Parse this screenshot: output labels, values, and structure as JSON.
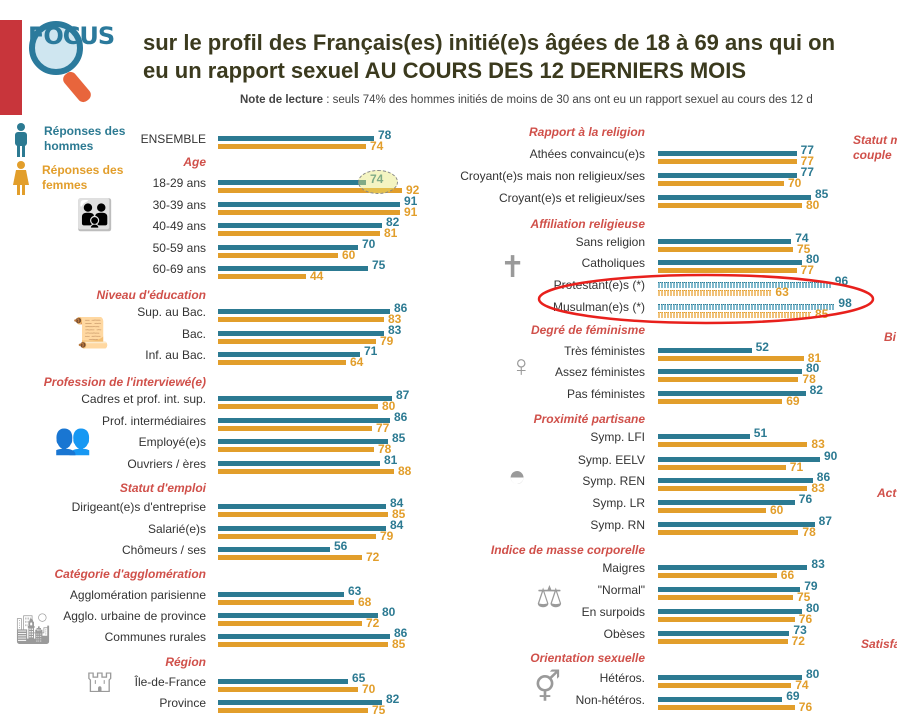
{
  "header": {
    "logo_text": "FOCUS",
    "title_line1": "sur le profil des Français(es) initié(e)s âgées de 18 à 69 ans qui on",
    "title_line2": "eu un rapport sexuel AU COURS DES 12 DERNIERS MOIS",
    "note_label": "Note de lecture",
    "note_text": " : seuls 74% des hommes initiés de moins de 30 ans ont eu un rapport sexuel au cours des 12 d"
  },
  "legend": {
    "men": "Réponses des hommes",
    "women": "Réponses des femmes"
  },
  "colors": {
    "men": "#2c7a92",
    "women": "#e29e2b",
    "heading": "#d0504a",
    "highlight": "#e8201c"
  },
  "right_edge_headings": [
    "Statut m",
    "couple",
    "Bi",
    "Act",
    "Satisfa"
  ],
  "chart_data": {
    "type": "bar",
    "orientation": "horizontal",
    "unit": "%",
    "series_names": [
      "Réponses des hommes",
      "Réponses des femmes"
    ],
    "ensemble": {
      "label": "ENSEMBLE",
      "men": 78,
      "women": 74
    },
    "columns": [
      [
        {
          "heading": "Age",
          "rows": [
            {
              "label": "18-29 ans",
              "men": 74,
              "women": 92,
              "highlighted": "men"
            },
            {
              "label": "30-39 ans",
              "men": 91,
              "women": 91
            },
            {
              "label": "40-49 ans",
              "men": 82,
              "women": 81
            },
            {
              "label": "50-59 ans",
              "men": 70,
              "women": 60
            },
            {
              "label": "60-69 ans",
              "men": 75,
              "women": 44
            }
          ]
        },
        {
          "heading": "Niveau d'éducation",
          "rows": [
            {
              "label": "Sup. au Bac.",
              "men": 86,
              "women": 83
            },
            {
              "label": "Bac.",
              "men": 83,
              "women": 79
            },
            {
              "label": "Inf. au Bac.",
              "men": 71,
              "women": 64
            }
          ]
        },
        {
          "heading": "Profession de l'interviewé(e)",
          "rows": [
            {
              "label": "Cadres et prof. int. sup.",
              "men": 87,
              "women": 80
            },
            {
              "label": "Prof. intermédiaires",
              "men": 86,
              "women": 77
            },
            {
              "label": "Employé(e)s",
              "men": 85,
              "women": 78
            },
            {
              "label": "Ouvriers / ères",
              "men": 81,
              "women": 88
            }
          ]
        },
        {
          "heading": "Statut d'emploi",
          "rows": [
            {
              "label": "Dirigeant(e)s d'entreprise",
              "men": 84,
              "women": 85
            },
            {
              "label": "Salarié(e)s",
              "men": 84,
              "women": 79
            },
            {
              "label": "Chômeurs / ses",
              "men": 56,
              "women": 72
            }
          ]
        },
        {
          "heading": "Catégorie d'agglomération",
          "rows": [
            {
              "label": "Agglomération parisienne",
              "men": 63,
              "women": 68
            },
            {
              "label": "Agglo. urbaine de province",
              "men": 80,
              "women": 72
            },
            {
              "label": "Communes rurales",
              "men": 86,
              "women": 85
            }
          ]
        },
        {
          "heading": "Région",
          "rows": [
            {
              "label": "Île-de-France",
              "men": 65,
              "women": 70
            },
            {
              "label": "Province",
              "men": 82,
              "women": 75
            }
          ]
        }
      ],
      [
        {
          "heading": "Rapport à la religion",
          "rows": [
            {
              "label": "Athées convaincu(e)s",
              "men": 77,
              "women": 77
            },
            {
              "label": "Croyant(e)s mais non religieux/ses",
              "men": 77,
              "women": 70
            },
            {
              "label": "Croyant(e)s et religieux/ses",
              "men": 85,
              "women": 80
            }
          ]
        },
        {
          "heading": "Affiliation religieuse",
          "rows": [
            {
              "label": "Sans religion",
              "men": 74,
              "women": 75
            },
            {
              "label": "Catholiques",
              "men": 80,
              "women": 77
            },
            {
              "label": "Protestant(e)s (*)",
              "men": 96,
              "women": 63,
              "low_sample": true
            },
            {
              "label": "Musulman(e)s (*)",
              "men": 98,
              "women": 85,
              "low_sample": true
            }
          ]
        },
        {
          "heading": "Degré de féminisme",
          "rows": [
            {
              "label": "Très féministes",
              "men": 52,
              "women": 81
            },
            {
              "label": "Assez féministes",
              "men": 80,
              "women": 78
            },
            {
              "label": "Pas féministes",
              "men": 82,
              "women": 69
            }
          ]
        },
        {
          "heading": "Proximité partisane",
          "rows": [
            {
              "label": "Symp. LFI",
              "men": 51,
              "women": 83
            },
            {
              "label": "Symp. EELV",
              "men": 90,
              "women": 71
            },
            {
              "label": "Symp. REN",
              "men": 86,
              "women": 83
            },
            {
              "label": "Symp. LR",
              "men": 76,
              "women": 60
            },
            {
              "label": "Symp. RN",
              "men": 87,
              "women": 78
            }
          ]
        },
        {
          "heading": "Indice de masse corporelle",
          "rows": [
            {
              "label": "Maigres",
              "men": 83,
              "women": 66
            },
            {
              "label": "\"Normal\"",
              "men": 79,
              "women": 75
            },
            {
              "label": "En surpoids",
              "men": 80,
              "women": 76
            },
            {
              "label": "Obèses",
              "men": 73,
              "women": 72
            }
          ]
        },
        {
          "heading": "Orientation sexuelle",
          "rows": [
            {
              "label": "Hétéros.",
              "men": 80,
              "women": 74
            },
            {
              "label": "Non-hétéros.",
              "men": 69,
              "women": 76
            }
          ]
        }
      ]
    ]
  }
}
